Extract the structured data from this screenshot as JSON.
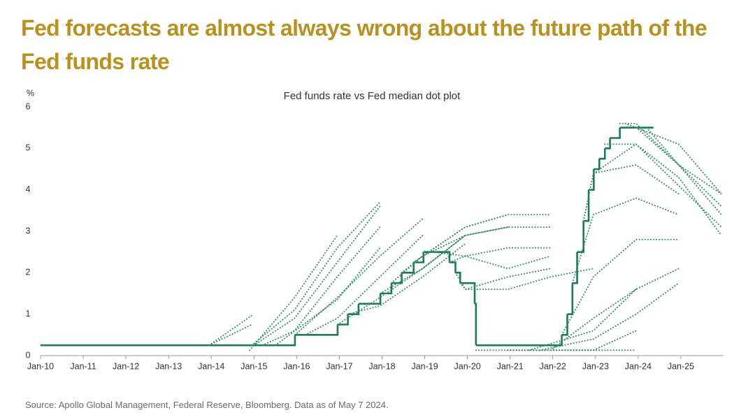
{
  "headline": "Fed forecasts are almost always wrong about the future path of the Fed funds rate",
  "source": "Source: Apollo Global Management, Federal Reserve, Bloomberg. Data as of May 7 2024.",
  "chart_data": {
    "type": "line",
    "title": "Fed funds rate vs Fed median dot plot",
    "y_label": "%",
    "xlim": [
      2010,
      2026
    ],
    "xticks": [
      {
        "value": 2010,
        "label": "Jan-10"
      },
      {
        "value": 2011,
        "label": "Jan-11"
      },
      {
        "value": 2012,
        "label": "Jan-12"
      },
      {
        "value": 2013,
        "label": "Jan-13"
      },
      {
        "value": 2014,
        "label": "Jan-14"
      },
      {
        "value": 2015,
        "label": "Jan-15"
      },
      {
        "value": 2016,
        "label": "Jan-16"
      },
      {
        "value": 2017,
        "label": "Jan-17"
      },
      {
        "value": 2018,
        "label": "Jan-18"
      },
      {
        "value": 2019,
        "label": "Jan-19"
      },
      {
        "value": 2020,
        "label": "Jan-20"
      },
      {
        "value": 2021,
        "label": "Jan-21"
      },
      {
        "value": 2022,
        "label": "Jan-22"
      },
      {
        "value": 2023,
        "label": "Jan-23"
      },
      {
        "value": 2024,
        "label": "Jan-24"
      },
      {
        "value": 2025,
        "label": "Jan-25"
      }
    ],
    "ylim": [
      0,
      6
    ],
    "yticks": [
      0,
      1,
      2,
      3,
      4,
      5,
      6
    ],
    "grid": false,
    "series": [
      {
        "color": "#1b7a5e",
        "style": "solid",
        "step": "post",
        "x": [
          2010.0,
          2015.96,
          2016.96,
          2017.2,
          2017.45,
          2017.96,
          2018.22,
          2018.46,
          2018.74,
          2018.97,
          2019.58,
          2019.72,
          2019.83,
          2020.17,
          2020.2,
          2022.21,
          2022.34,
          2022.46,
          2022.57,
          2022.72,
          2022.84,
          2022.96,
          2023.09,
          2023.22,
          2023.34,
          2023.57,
          2024.36
        ],
        "values": [
          0.25,
          0.5,
          0.75,
          1.0,
          1.25,
          1.5,
          1.75,
          2.0,
          2.25,
          2.5,
          2.25,
          2.0,
          1.75,
          1.25,
          0.25,
          0.5,
          1.0,
          1.75,
          2.5,
          3.25,
          4.0,
          4.5,
          4.75,
          5.0,
          5.25,
          5.5,
          5.5
        ]
      },
      {
        "color": "#2e8b62",
        "style": "dotted",
        "x": [
          2013.95,
          2014.95
        ],
        "values": [
          0.25,
          0.97
        ]
      },
      {
        "color": "#2e8b62",
        "style": "dotted",
        "x": [
          2013.95,
          2014.95
        ],
        "values": [
          0.25,
          0.75
        ]
      },
      {
        "color": "#2e8b62",
        "style": "dotted",
        "x": [
          2014.9,
          2015.95,
          2016.95
        ],
        "values": [
          0.13,
          1.4,
          2.9
        ]
      },
      {
        "color": "#2e8b62",
        "style": "dotted",
        "x": [
          2014.95,
          2015.95,
          2016.95,
          2017.95
        ],
        "values": [
          0.25,
          1.1,
          2.6,
          3.7
        ]
      },
      {
        "color": "#2e8b62",
        "style": "dotted",
        "x": [
          2015.0,
          2015.95,
          2016.95,
          2017.95
        ],
        "values": [
          0.25,
          0.9,
          2.25,
          3.6
        ]
      },
      {
        "color": "#2e8b62",
        "style": "dotted",
        "x": [
          2015.2,
          2015.95,
          2016.95,
          2017.95
        ],
        "values": [
          0.25,
          0.6,
          1.9,
          3.1
        ]
      },
      {
        "color": "#2e8b62",
        "style": "dotted",
        "x": [
          2015.5,
          2016.95,
          2017.95
        ],
        "values": [
          0.25,
          1.35,
          2.6
        ]
      },
      {
        "color": "#2e8b62",
        "style": "dotted",
        "x": [
          2015.96,
          2016.95,
          2017.95,
          2018.95
        ],
        "values": [
          0.5,
          1.4,
          2.4,
          3.3
        ]
      },
      {
        "color": "#2e8b62",
        "style": "dotted",
        "x": [
          2016.2,
          2016.95,
          2017.95,
          2018.95
        ],
        "values": [
          0.5,
          0.9,
          1.9,
          2.9
        ]
      },
      {
        "color": "#2e8b62",
        "style": "dotted",
        "x": [
          2016.96,
          2017.95,
          2018.95,
          2019.95
        ],
        "values": [
          0.75,
          1.4,
          2.1,
          2.9
        ]
      },
      {
        "color": "#2e8b62",
        "style": "dotted",
        "x": [
          2017.2,
          2017.95,
          2018.95,
          2019.95
        ],
        "values": [
          1.0,
          1.2,
          1.9,
          2.7
        ]
      },
      {
        "color": "#2e8b62",
        "style": "dotted",
        "x": [
          2017.96,
          2018.95,
          2019.95,
          2020.95
        ],
        "values": [
          1.5,
          2.1,
          2.9,
          3.1
        ]
      },
      {
        "color": "#2e8b62",
        "style": "dotted",
        "x": [
          2018.22,
          2018.95,
          2019.95,
          2020.95
        ],
        "values": [
          1.75,
          2.4,
          3.1,
          3.4
        ]
      },
      {
        "color": "#2e8b62",
        "style": "dotted",
        "x": [
          2018.46,
          2018.95,
          2019.95,
          2020.95,
          2021.95
        ],
        "values": [
          2.0,
          2.4,
          3.1,
          3.4,
          3.4
        ]
      },
      {
        "color": "#2e8b62",
        "style": "dotted",
        "x": [
          2018.74,
          2018.95,
          2019.95,
          2020.95,
          2021.95
        ],
        "values": [
          2.25,
          2.4,
          2.9,
          3.1,
          3.1
        ]
      },
      {
        "color": "#2e8b62",
        "style": "dotted",
        "x": [
          2019.2,
          2019.95,
          2020.95,
          2021.95
        ],
        "values": [
          2.5,
          2.4,
          2.6,
          2.6
        ]
      },
      {
        "color": "#2e8b62",
        "style": "dotted",
        "x": [
          2019.58,
          2019.95,
          2020.95,
          2021.95
        ],
        "values": [
          2.25,
          2.4,
          2.1,
          2.4
        ]
      },
      {
        "color": "#2e8b62",
        "style": "dotted",
        "x": [
          2019.72,
          2019.95,
          2020.95,
          2021.95
        ],
        "values": [
          2.0,
          1.6,
          1.9,
          2.1
        ]
      },
      {
        "color": "#2e8b62",
        "style": "dotted",
        "x": [
          2019.83,
          2019.95,
          2020.95,
          2021.95,
          2022.95
        ],
        "values": [
          1.75,
          1.6,
          1.6,
          1.9,
          2.1
        ]
      },
      {
        "color": "#2e8b62",
        "style": "dotted",
        "x": [
          2020.2,
          2020.95,
          2021.95,
          2022.95,
          2023.95
        ],
        "values": [
          0.13,
          0.13,
          0.13,
          0.13,
          0.13
        ]
      },
      {
        "color": "#2e8b62",
        "style": "dotted",
        "x": [
          2020.95,
          2021.95,
          2022.95,
          2023.95
        ],
        "values": [
          0.13,
          0.13,
          0.13,
          0.6
        ]
      },
      {
        "color": "#2e8b62",
        "style": "dotted",
        "x": [
          2021.45,
          2022.95,
          2023.95
        ],
        "values": [
          0.13,
          0.6,
          1.6
        ]
      },
      {
        "color": "#2e8b62",
        "style": "dotted",
        "x": [
          2021.7,
          2022.95,
          2023.95,
          2024.95
        ],
        "values": [
          0.13,
          0.4,
          1.0,
          1.75
        ]
      },
      {
        "color": "#2e8b62",
        "style": "dotted",
        "x": [
          2021.95,
          2022.95,
          2023.95,
          2024.95
        ],
        "values": [
          0.13,
          0.9,
          1.6,
          2.1
        ]
      },
      {
        "color": "#2e8b62",
        "style": "dotted",
        "x": [
          2022.21,
          2022.95,
          2023.95,
          2024.95
        ],
        "values": [
          0.5,
          1.9,
          2.8,
          2.8
        ]
      },
      {
        "color": "#2e8b62",
        "style": "dotted",
        "x": [
          2022.46,
          2022.95,
          2023.95,
          2024.95
        ],
        "values": [
          1.75,
          3.4,
          3.8,
          3.4
        ]
      },
      {
        "color": "#2e8b62",
        "style": "dotted",
        "x": [
          2022.72,
          2022.95,
          2023.95,
          2024.95
        ],
        "values": [
          3.25,
          4.4,
          4.6,
          3.9
        ]
      },
      {
        "color": "#2e8b62",
        "style": "dotted",
        "x": [
          2022.96,
          2023.95,
          2024.95,
          2025.95
        ],
        "values": [
          4.4,
          5.1,
          4.1,
          3.1
        ]
      },
      {
        "color": "#2e8b62",
        "style": "dotted",
        "x": [
          2023.22,
          2023.95,
          2024.95,
          2025.95
        ],
        "values": [
          5.1,
          5.1,
          4.3,
          2.9
        ]
      },
      {
        "color": "#2e8b62",
        "style": "dotted",
        "x": [
          2023.57,
          2023.95,
          2024.95,
          2025.95
        ],
        "values": [
          5.6,
          5.6,
          4.6,
          3.4
        ]
      },
      {
        "color": "#2e8b62",
        "style": "dotted",
        "x": [
          2023.96,
          2024.95,
          2025.95
        ],
        "values": [
          5.5,
          4.6,
          3.6
        ]
      },
      {
        "color": "#2e8b62",
        "style": "dotted",
        "x": [
          2024.2,
          2024.95,
          2025.95
        ],
        "values": [
          5.5,
          4.6,
          3.9
        ]
      },
      {
        "color": "#2e8b62",
        "style": "dotted",
        "x": [
          2023.7,
          2024.95,
          2025.95
        ],
        "values": [
          5.6,
          5.1,
          3.9
        ]
      }
    ]
  }
}
